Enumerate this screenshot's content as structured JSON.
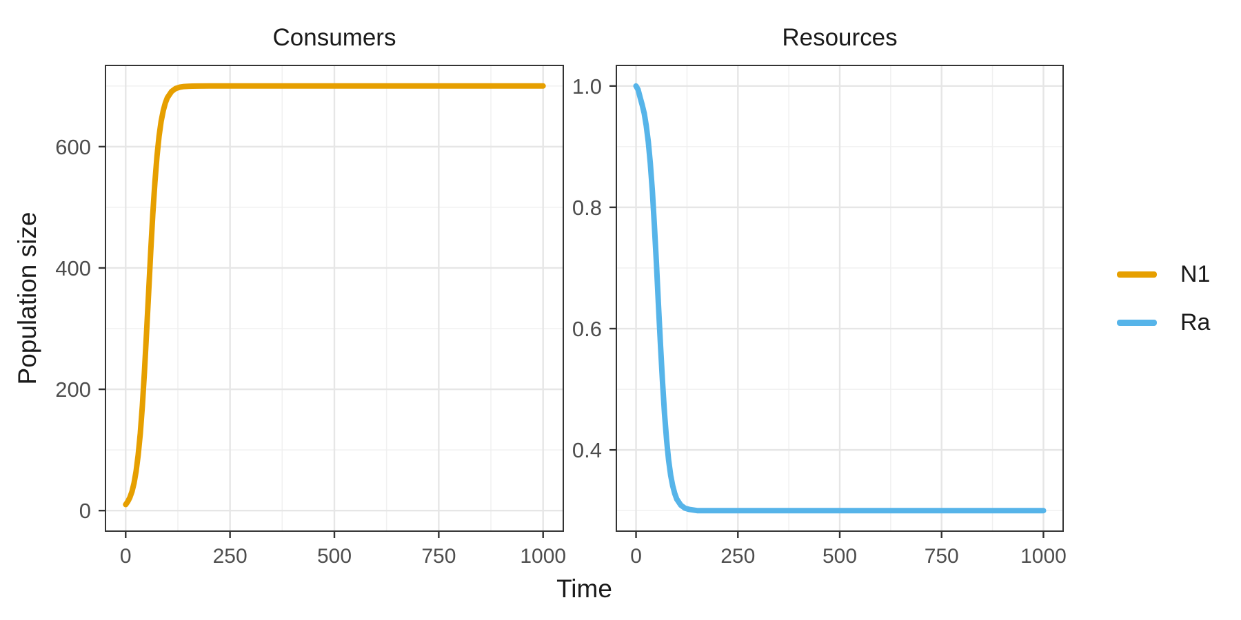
{
  "figure": {
    "xlabel": "Time",
    "ylabel": "Population size",
    "background": "#FFFFFF",
    "colors": {
      "grid_major": "#E6E6E6",
      "grid_minor": "#F0F0F0",
      "panel_border": "#333333",
      "tick_mark": "#333333",
      "tick_label": "#4D4D4D",
      "text": "#1A1A1A",
      "series_n1": "#E69F00",
      "series_ra": "#56B4E9"
    }
  },
  "legend": {
    "position": "right",
    "items": [
      {
        "label": "N1",
        "color": "#E69F00"
      },
      {
        "label": "Ra",
        "color": "#56B4E9"
      }
    ]
  },
  "chart_data": [
    {
      "type": "line",
      "title": "Consumers",
      "xlabel": "Time",
      "ylabel": "Population size",
      "xlim": [
        0,
        1000
      ],
      "ylim": [
        0,
        700
      ],
      "expand": 0.05,
      "grid": true,
      "x_ticks": {
        "values": [
          0,
          250,
          500,
          750,
          1000
        ],
        "labels": [
          "0",
          "250",
          "500",
          "750",
          "1000"
        ],
        "minor": [
          125,
          375,
          625,
          875
        ]
      },
      "y_ticks": {
        "values": [
          0,
          200,
          400,
          600
        ],
        "labels": [
          "0",
          "200",
          "400",
          "600"
        ],
        "minor": [
          100,
          300,
          500,
          700
        ]
      },
      "series": [
        {
          "name": "N1",
          "color": "#E69F00",
          "x": [
            0,
            5,
            10,
            15,
            20,
            25,
            30,
            35,
            40,
            45,
            50,
            55,
            60,
            65,
            70,
            75,
            80,
            85,
            90,
            95,
            100,
            110,
            120,
            130,
            140,
            150,
            160,
            175,
            200,
            250,
            300,
            400,
            500,
            600,
            700,
            800,
            900,
            1000
          ],
          "y": [
            10.0,
            14.7,
            21.5,
            31.2,
            45.2,
            64.7,
            91.5,
            127.3,
            172.9,
            228.5,
            292.1,
            359.9,
            426.9,
            488.5,
            541.4,
            584.1,
            617.2,
            641.6,
            659.4,
            672.0,
            680.8,
            691.1,
            695.9,
            698.1,
            699.1,
            699.6,
            699.8,
            699.9,
            700.0,
            700.0,
            700.0,
            700.0,
            700.0,
            700.0,
            700.0,
            700.0,
            700.0,
            700.0
          ]
        }
      ]
    },
    {
      "type": "line",
      "title": "Resources",
      "xlabel": "Time",
      "ylabel": "",
      "xlim": [
        0,
        1000
      ],
      "ylim": [
        0.3,
        1.0
      ],
      "expand": 0.05,
      "grid": true,
      "x_ticks": {
        "values": [
          0,
          250,
          500,
          750,
          1000
        ],
        "labels": [
          "0",
          "250",
          "500",
          "750",
          "1000"
        ],
        "minor": [
          125,
          375,
          625,
          875
        ]
      },
      "y_ticks": {
        "values": [
          0.4,
          0.6,
          0.8,
          1.0
        ],
        "labels": [
          "0.4",
          "0.6",
          "0.8",
          "1.0"
        ],
        "minor": [
          0.3,
          0.5,
          0.7,
          0.9
        ]
      },
      "series": [
        {
          "name": "Ra",
          "color": "#56B4E9",
          "x": [
            0,
            5,
            10,
            15,
            20,
            25,
            30,
            35,
            40,
            45,
            50,
            55,
            60,
            65,
            70,
            75,
            80,
            85,
            90,
            95,
            100,
            110,
            120,
            130,
            140,
            150,
            160,
            175,
            200,
            250,
            300,
            400,
            500,
            600,
            700,
            800,
            900,
            1000
          ],
          "y": [
            1.0,
            0.994,
            0.981,
            0.969,
            0.955,
            0.935,
            0.908,
            0.873,
            0.827,
            0.771,
            0.708,
            0.64,
            0.573,
            0.511,
            0.459,
            0.416,
            0.383,
            0.358,
            0.341,
            0.328,
            0.319,
            0.309,
            0.304,
            0.302,
            0.301,
            0.3,
            0.3,
            0.3,
            0.3,
            0.3,
            0.3,
            0.3,
            0.3,
            0.3,
            0.3,
            0.3,
            0.3,
            0.3
          ]
        }
      ]
    }
  ]
}
